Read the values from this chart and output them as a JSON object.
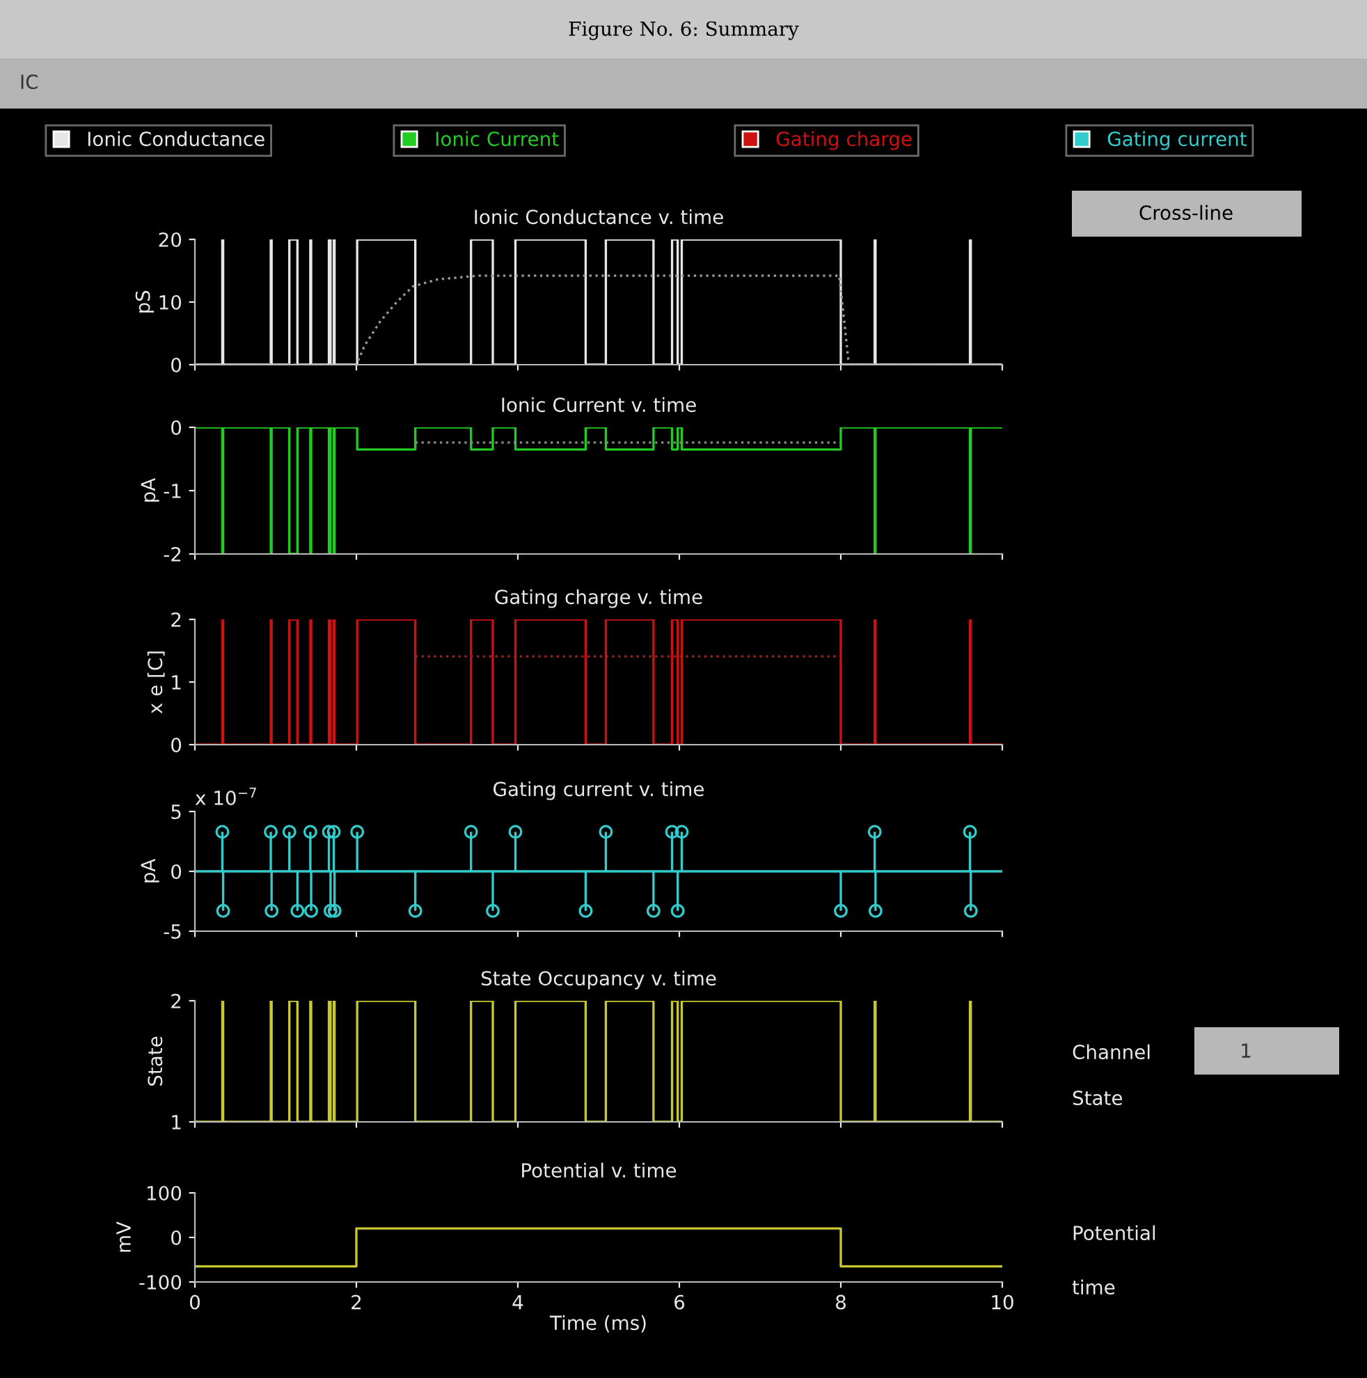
{
  "chart_data": [
    {
      "type": "other",
      "title": "Figure No. 6: Summary",
      "annotations": [
        "IC",
        "Cross-line",
        "Channel",
        "1",
        "State",
        "Potential",
        "time"
      ]
    },
    {
      "type": "step",
      "title": "Ionic Conductance v. time",
      "ylabel": "pS",
      "xlim": [
        0,
        10
      ],
      "xticks": [
        0,
        2,
        4,
        6,
        8,
        10
      ],
      "ylim": [
        0,
        20
      ],
      "yticks": [
        0,
        10,
        20
      ],
      "tick_labels": "y",
      "legend": "top",
      "series": [
        {
          "name": "Ionic Conductance",
          "color": "#e6e6e6",
          "x": [
            0,
            0.34,
            0.35,
            0.94,
            0.95,
            1.17,
            1.27,
            1.43,
            1.44,
            1.66,
            1.68,
            1.72,
            1.73,
            2.01,
            2.73,
            3.42,
            3.69,
            3.97,
            4.84,
            5.09,
            5.68,
            5.91,
            5.98,
            6.03,
            8.0,
            8.42,
            8.43,
            9.6,
            9.61,
            10
          ],
          "values": [
            0,
            20,
            0,
            20,
            0,
            20,
            0,
            20,
            0,
            20,
            0,
            20,
            0,
            20,
            0,
            20,
            0,
            20,
            0,
            20,
            0,
            20,
            0,
            20,
            0,
            20,
            0,
            20,
            0,
            0
          ]
        },
        {
          "type": "line",
          "line_style": "dotted",
          "color": "#9a9a9a",
          "x": [
            0,
            2.0,
            2.1,
            2.3,
            2.5,
            2.7,
            3.0,
            3.5,
            7.98,
            8.0,
            8.1,
            10
          ],
          "values": [
            0,
            0,
            3,
            7,
            10,
            12.5,
            13.6,
            14.2,
            14.2,
            12,
            0,
            0
          ]
        }
      ]
    },
    {
      "type": "step",
      "title": "Ionic Current v. time",
      "ylabel": "pA",
      "xlim": [
        0,
        10
      ],
      "xticks": [
        0,
        2,
        4,
        6,
        8,
        10
      ],
      "ylim": [
        -2,
        0
      ],
      "yticks": [
        -2,
        -1,
        0
      ],
      "tick_labels": "y",
      "legend": "top",
      "series": [
        {
          "name": "Ionic Current",
          "color": "#22cc22",
          "x": [
            0,
            0.34,
            0.35,
            0.94,
            0.95,
            1.17,
            1.27,
            1.43,
            1.44,
            1.66,
            1.68,
            1.72,
            1.73,
            2.01,
            2.73,
            3.42,
            3.69,
            3.97,
            4.84,
            5.09,
            5.68,
            5.91,
            5.98,
            6.03,
            8.0,
            8.42,
            8.43,
            9.6,
            9.61,
            10
          ],
          "values": [
            0,
            -2,
            0,
            -2,
            0,
            -2,
            0,
            -2,
            0,
            -2,
            0,
            -2,
            0,
            -0.35,
            0,
            -0.35,
            0,
            -0.35,
            0,
            -0.35,
            0,
            -0.35,
            0,
            -0.35,
            0,
            -2,
            0,
            -2,
            0,
            0
          ]
        },
        {
          "type": "line",
          "line_style": "dotted",
          "color": "#8a8a8a",
          "x": [
            2.73,
            8.0
          ],
          "values": [
            -0.24,
            -0.24
          ]
        }
      ]
    },
    {
      "type": "step",
      "title": "Gating charge v. time",
      "ylabel": "x e [C]",
      "xlim": [
        0,
        10
      ],
      "xticks": [
        0,
        2,
        4,
        6,
        8,
        10
      ],
      "ylim": [
        0,
        2
      ],
      "yticks": [
        0,
        1,
        2
      ],
      "tick_labels": "y",
      "legend": "top",
      "series": [
        {
          "name": "Gating charge",
          "color": "#cc1111",
          "x": [
            0,
            0.34,
            0.35,
            0.94,
            0.95,
            1.17,
            1.27,
            1.43,
            1.44,
            1.66,
            1.68,
            1.72,
            1.73,
            2.01,
            2.73,
            3.42,
            3.69,
            3.97,
            4.84,
            5.09,
            5.68,
            5.91,
            5.98,
            6.03,
            8.0,
            8.42,
            8.43,
            9.6,
            9.61,
            10
          ],
          "values": [
            0,
            2,
            0,
            2,
            0,
            2,
            0,
            2,
            0,
            2,
            0,
            2,
            0,
            2,
            0,
            2,
            0,
            2,
            0,
            2,
            0,
            2,
            0,
            2,
            0,
            2,
            0,
            2,
            0,
            0
          ]
        },
        {
          "type": "line",
          "line_style": "dotted",
          "color": "#992222",
          "x": [
            2.73,
            8.0
          ],
          "values": [
            1.41,
            1.41
          ]
        }
      ]
    },
    {
      "type": "lollipop",
      "title": "Gating current v. time",
      "ylabel": "pA",
      "xlim": [
        0,
        10
      ],
      "xticks": [
        0,
        2,
        4,
        6,
        8,
        10
      ],
      "ylim": [
        -5,
        5
      ],
      "yticks": [
        -5,
        0,
        5
      ],
      "tick_labels": "y",
      "legend": "top",
      "marker": "circle",
      "annotations": [
        "x 10$^{−7}$"
      ],
      "ref_lines": [
        {
          "axis": "y",
          "value": 0,
          "color": "#33cccc"
        }
      ],
      "series": [
        {
          "name": "Gating current",
          "color": "#33cccc",
          "x": [
            0.34,
            0.35,
            0.94,
            0.95,
            1.17,
            1.27,
            1.43,
            1.44,
            1.66,
            1.68,
            1.72,
            1.73,
            2.01,
            2.73,
            3.42,
            3.69,
            3.97,
            4.84,
            5.09,
            5.68,
            5.91,
            5.98,
            6.03,
            8.0,
            8.42,
            8.43,
            9.6,
            9.61
          ],
          "values": [
            3.3,
            -3.3,
            3.3,
            -3.3,
            3.3,
            -3.3,
            3.3,
            -3.3,
            3.3,
            -3.3,
            3.3,
            -3.3,
            3.3,
            -3.3,
            3.3,
            -3.3,
            3.3,
            -3.3,
            3.3,
            -3.3,
            3.3,
            -3.3,
            3.3,
            -3.3,
            3.3,
            -3.3,
            3.3,
            -3.3
          ]
        }
      ]
    },
    {
      "type": "step",
      "title": "State Occupancy v. time",
      "ylabel": "State",
      "xlim": [
        0,
        10
      ],
      "xticks": [
        0,
        2,
        4,
        6,
        8,
        10
      ],
      "ylim": [
        1,
        2
      ],
      "yticks": [
        1,
        2
      ],
      "tick_labels": "y",
      "series": [
        {
          "color": "#c8c832",
          "x": [
            0,
            0.34,
            0.35,
            0.94,
            0.95,
            1.17,
            1.27,
            1.43,
            1.44,
            1.66,
            1.68,
            1.72,
            1.73,
            2.01,
            2.73,
            3.42,
            3.69,
            3.97,
            4.84,
            5.09,
            5.68,
            5.91,
            5.98,
            6.03,
            8.0,
            8.42,
            8.43,
            9.6,
            9.61,
            10
          ],
          "values": [
            1,
            2,
            1,
            2,
            1,
            2,
            1,
            2,
            1,
            2,
            1,
            2,
            1,
            2,
            1,
            2,
            1,
            2,
            1,
            2,
            1,
            2,
            1,
            2,
            1,
            2,
            1,
            2,
            1,
            1
          ]
        }
      ]
    },
    {
      "type": "step",
      "title": "Potential v. time",
      "ylabel": "mV",
      "xlabel": "Time (ms)",
      "xlim": [
        0,
        10
      ],
      "xticks": [
        0,
        2,
        4,
        6,
        8,
        10
      ],
      "ylim": [
        -100,
        100
      ],
      "yticks": [
        -100,
        0,
        100
      ],
      "series": [
        {
          "type": "line",
          "color": "#c8c832",
          "x": [
            0,
            2,
            2,
            8,
            8,
            10
          ],
          "values": [
            -65,
            -65,
            20,
            20,
            -65,
            -65
          ]
        }
      ]
    }
  ]
}
